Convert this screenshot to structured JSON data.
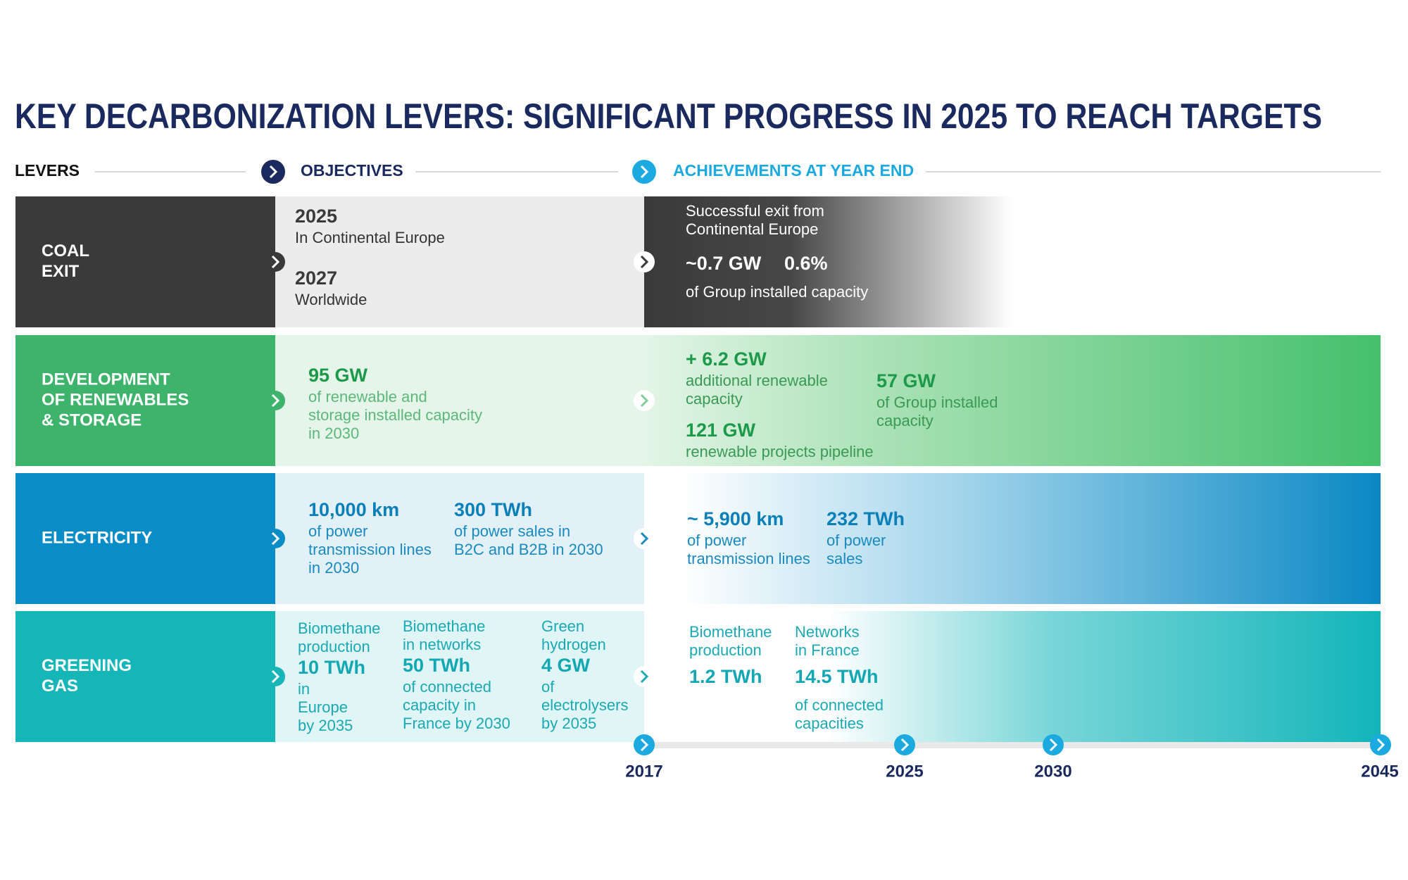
{
  "title": "KEY DECARBONIZATION LEVERS: SIGNIFICANT PROGRESS IN 2025 TO REACH TARGETS",
  "columns": {
    "levers": "LEVERS",
    "objectives": "OBJECTIVES",
    "achievements": "ACHIEVEMENTS AT YEAR END"
  },
  "rows": [
    {
      "lever": [
        "COAL",
        "EXIT"
      ],
      "objectives": [
        {
          "figure": "2025",
          "text": [
            "In Continental Europe"
          ]
        },
        {
          "figure": "2027",
          "text": [
            "Worldwide"
          ]
        }
      ],
      "achievements": [
        {
          "text": [
            "Successful exit from",
            "Continental Europe"
          ]
        },
        {
          "figure": "~0.7 GW",
          "text": [
            "of Group installed capacity"
          ]
        },
        {
          "figure": "0.6%"
        }
      ]
    },
    {
      "lever": [
        "DEVELOPMENT",
        "OF RENEWABLES",
        "& STORAGE"
      ],
      "objectives": [
        {
          "figure": "95 GW",
          "text": [
            "of renewable and",
            "storage installed capacity",
            "in 2030"
          ]
        }
      ],
      "achievements": [
        {
          "figure": "+ 6.2 GW",
          "text": [
            "additional renewable",
            "capacity"
          ]
        },
        {
          "figure": "121 GW",
          "text": [
            "renewable projects pipeline"
          ]
        },
        {
          "figure": "57 GW",
          "text": [
            "of Group installed",
            "capacity"
          ]
        }
      ]
    },
    {
      "lever": [
        "ELECTRICITY"
      ],
      "objectives": [
        {
          "figure": "10,000 km",
          "text": [
            "of power",
            "transmission lines",
            "in 2030"
          ]
        },
        {
          "figure": "300 TWh",
          "text": [
            "of power sales in",
            "B2C and B2B in 2030"
          ]
        }
      ],
      "achievements": [
        {
          "figure": "~ 5,900 km",
          "text": [
            "of power",
            "transmission lines"
          ]
        },
        {
          "figure": "232 TWh",
          "text": [
            "of power",
            "sales"
          ]
        }
      ]
    },
    {
      "lever": [
        "GREENING",
        "GAS"
      ],
      "objectives": [
        {
          "label": [
            "Biomethane",
            "production"
          ],
          "figure": "10 TWh",
          "text": [
            "in",
            "Europe",
            "by 2035"
          ]
        },
        {
          "label": [
            "Biomethane",
            "in networks"
          ],
          "figure": "50 TWh",
          "text": [
            "of connected",
            "capacity in",
            "France by 2030"
          ]
        },
        {
          "label": [
            "Green",
            "hydrogen"
          ],
          "figure": "4 GW",
          "text": [
            "of",
            "electrolysers",
            "by 2035"
          ]
        }
      ],
      "achievements": [
        {
          "label": [
            "Biomethane",
            "production"
          ],
          "figure": "1.2 TWh"
        },
        {
          "label": [
            "Networks",
            "in France"
          ],
          "figure": "14.5 TWh",
          "text": [
            "of connected",
            "capacities"
          ]
        }
      ]
    }
  ],
  "timeline": [
    "2017",
    "2025",
    "2030",
    "2045"
  ]
}
